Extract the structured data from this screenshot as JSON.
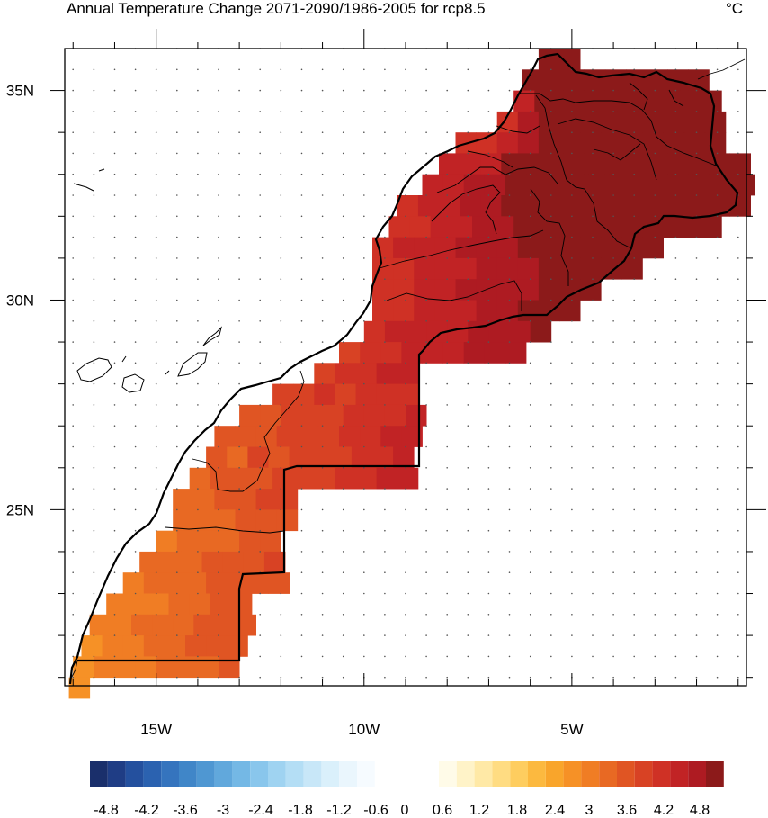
{
  "title": "Annual Temperature Change 2071-2090/1986-2005 for rcp8.5",
  "units": "°C",
  "map": {
    "lon_range": [
      -17.2,
      -0.8
    ],
    "lat_range": [
      20.8,
      36.0
    ],
    "lat_ticks": [
      {
        "value": 35,
        "label": "35N"
      },
      {
        "value": 30,
        "label": "30N"
      },
      {
        "value": 25,
        "label": "25N"
      }
    ],
    "lon_ticks": [
      {
        "value": -15,
        "label": "15W"
      },
      {
        "value": -10,
        "label": "10W"
      },
      {
        "value": -5,
        "label": "5W"
      }
    ]
  },
  "colorbar": {
    "labels": [
      "-4.8",
      "-4.2",
      "-3.6",
      "-3",
      "-2.4",
      "-1.8",
      "-1.2",
      "-0.6",
      "0",
      "0.6",
      "1.2",
      "1.8",
      "2.4",
      "3",
      "3.6",
      "4.2",
      "4.8"
    ],
    "negative_colors": [
      "#1a2f6b",
      "#1f3d85",
      "#24509e",
      "#2b62b0",
      "#3574be",
      "#4086c8",
      "#4f97d2",
      "#61a8dc",
      "#74b8e5",
      "#89c6ec",
      "#9fd3f1",
      "#b4def5",
      "#c8e7f8",
      "#daf0fb",
      "#eaf6fd",
      "#f6fbff"
    ],
    "positive_colors": [
      "#fffbe8",
      "#fff3c8",
      "#ffe9a6",
      "#ffdc82",
      "#fecd5f",
      "#fcb93f",
      "#f9a52b",
      "#f69126",
      "#f07d24",
      "#e86923",
      "#e05523",
      "#d84224",
      "#cf3125",
      "#c12325",
      "#ae1b22",
      "#8c1a1a"
    ]
  }
}
